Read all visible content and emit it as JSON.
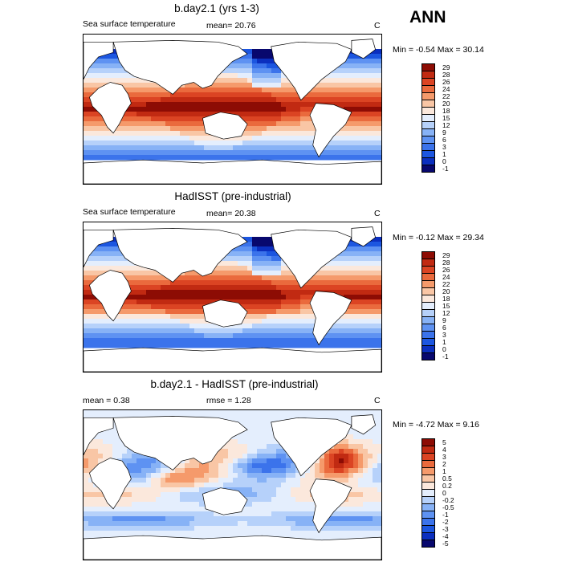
{
  "season": "ANN",
  "colors": {
    "sst": [
      "#08086e",
      "#0b2fbf",
      "#1c56e0",
      "#3b73eb",
      "#5e92f2",
      "#87b2f6",
      "#b6d1fa",
      "#e4eefd",
      "#fbe8dc",
      "#f9c6a5",
      "#f59a6b",
      "#ea6a3d",
      "#db4423",
      "#c12a12",
      "#8d0c04"
    ],
    "diff": [
      "#08086e",
      "#0b2fbf",
      "#1c56e0",
      "#3b73eb",
      "#5e92f2",
      "#87b2f6",
      "#b6d1fa",
      "#e4eefd",
      "#fbe8dc",
      "#f9c6a5",
      "#f59a6b",
      "#ea6a3d",
      "#db4423",
      "#c12a12",
      "#8d0c04"
    ]
  },
  "panels": [
    {
      "title": "b.day2.1 (yrs 1-3)",
      "left_label": "Sea surface temperature",
      "stat_label": "mean=  20.76",
      "unit": "C",
      "minmax": "Min =  -0.54 Max =  30.14",
      "colorbar_labels": [
        "-1",
        "0",
        "1",
        "3",
        "6",
        "9",
        "12",
        "15",
        "18",
        "20",
        "22",
        "24",
        "26",
        "28",
        "29"
      ]
    },
    {
      "title": "HadISST (pre-industrial)",
      "left_label": "Sea surface temperature",
      "stat_label": "mean=  20.38",
      "unit": "C",
      "minmax": "Min =  -0.12 Max =  29.34",
      "colorbar_labels": [
        "-1",
        "0",
        "1",
        "3",
        "6",
        "9",
        "12",
        "15",
        "18",
        "20",
        "22",
        "24",
        "26",
        "28",
        "29"
      ]
    },
    {
      "title": "b.day2.1 - HadISST (pre-industrial)",
      "left_label": "mean =   0.38",
      "stat_label": "rmse =   1.28",
      "unit": "C",
      "minmax": "Min =  -4.72 Max =   9.16",
      "colorbar_labels": [
        "-5",
        "-4",
        "-3",
        "-2",
        "-1",
        "-0.5",
        "-0.2",
        "0",
        "0.2",
        "0.5",
        "1",
        "2",
        "3",
        "4",
        "5"
      ]
    }
  ]
}
